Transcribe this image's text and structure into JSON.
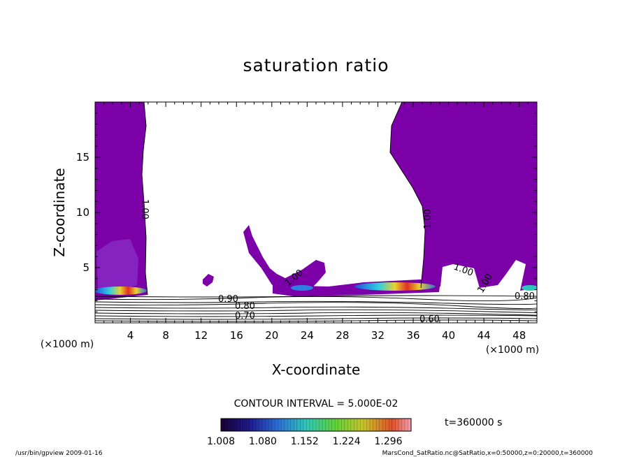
{
  "chart_data": {
    "type": "contour",
    "title": "saturation ratio",
    "xlabel": "X-coordinate",
    "ylabel": "Z-coordinate",
    "x_unit": "(×1000 m)",
    "z_unit": "(×1000 m)",
    "xlim": [
      0,
      50
    ],
    "ylim": [
      0,
      20
    ],
    "x_ticks": [
      "4",
      "8",
      "12",
      "16",
      "20",
      "24",
      "28",
      "32",
      "36",
      "40",
      "44",
      "48"
    ],
    "y_ticks": [
      "5",
      "10",
      "15"
    ],
    "contour_interval": "CONTOUR INTERVAL = 5.000E-02",
    "contour_labels": [
      "1.00",
      "1.00",
      "1.00",
      "1.00",
      "0.90",
      "0.80",
      "0.70",
      "1.00",
      "0.60",
      "0.80"
    ],
    "colorbar_ticks": [
      "1.008",
      "1.080",
      "1.152",
      "1.224",
      "1.296"
    ],
    "colorbar_range": [
      1.008,
      1.296
    ],
    "time_label": "t=360000 s",
    "fill_color": "#7b00a8"
  },
  "footer": {
    "left": "/usr/bin/gpview   2009-01-16",
    "right": "MarsCond_SatRatio.nc@SatRatio,x=0:50000,z=0:20000,t=360000"
  }
}
